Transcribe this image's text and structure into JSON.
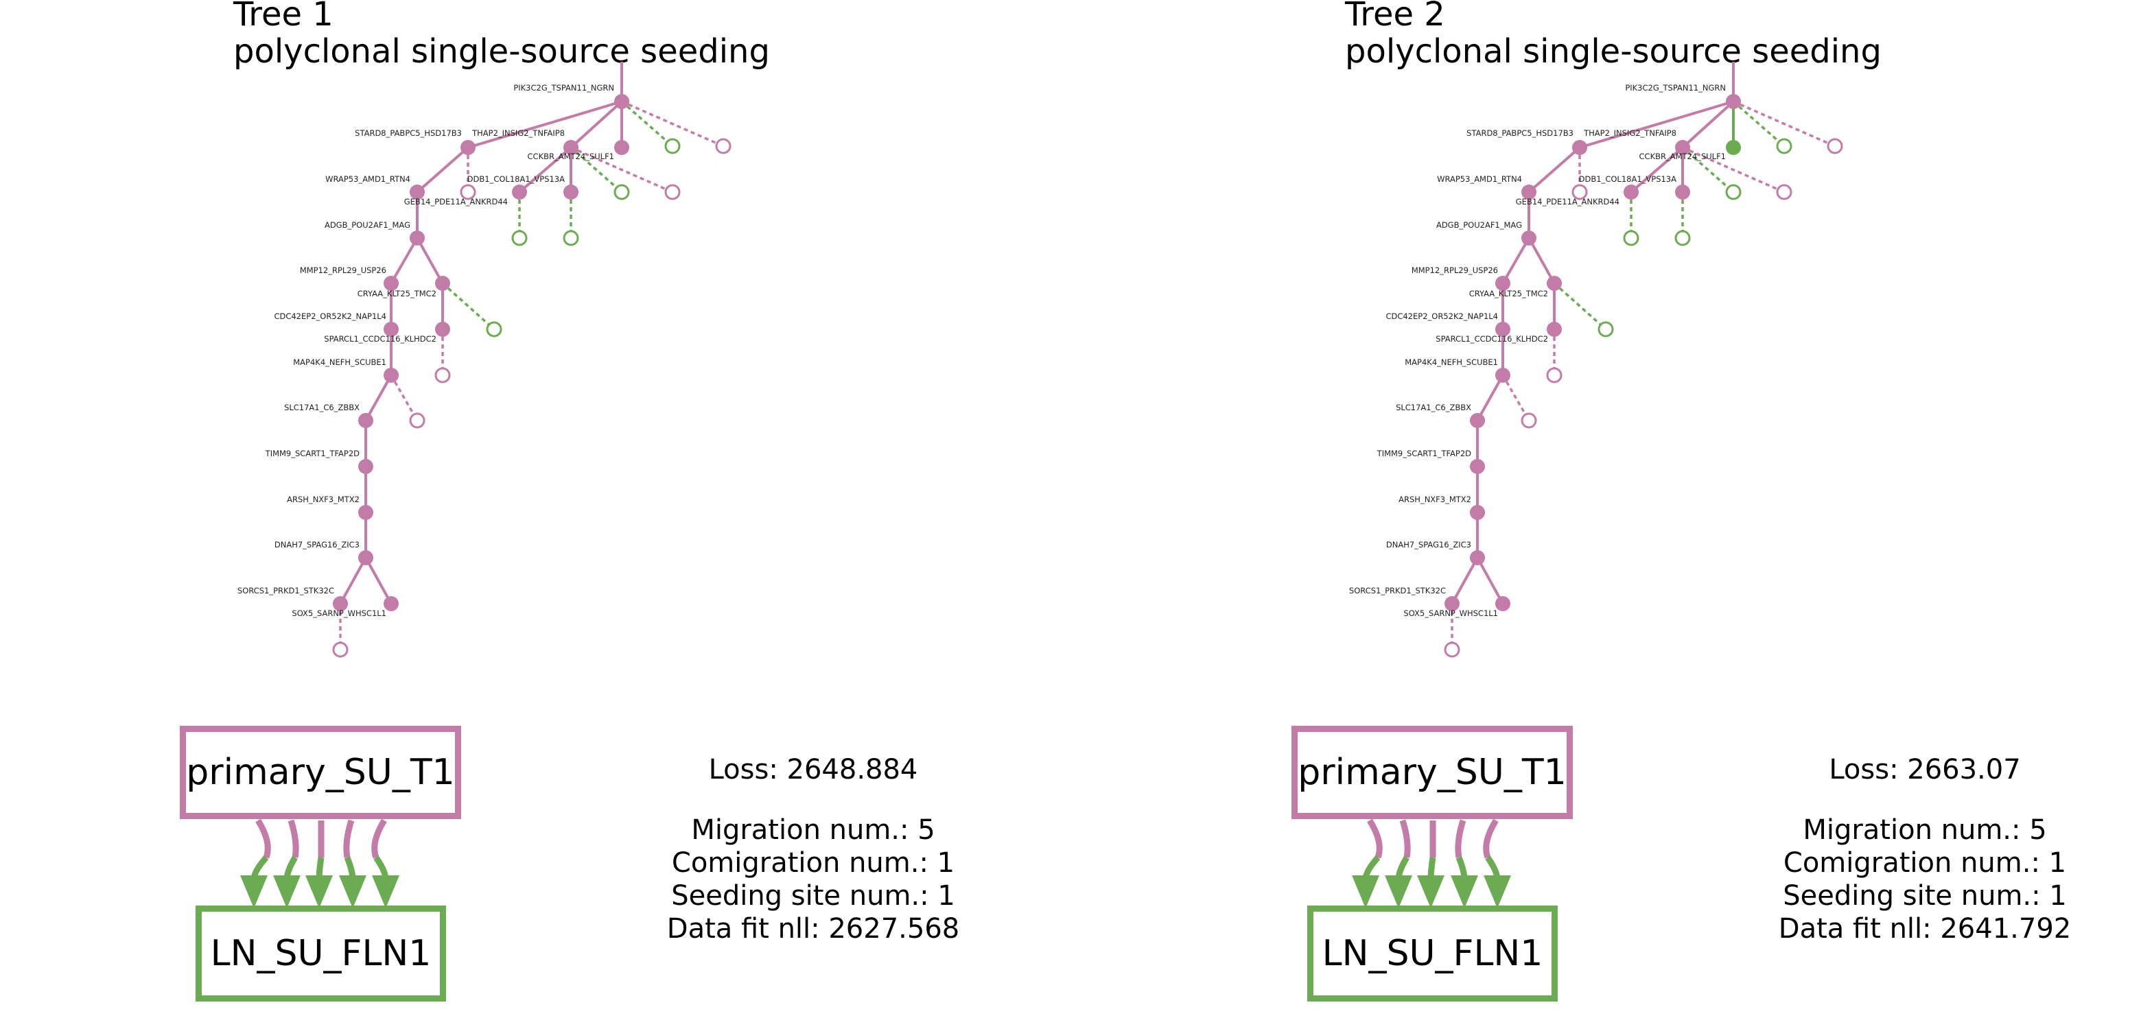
{
  "colors": {
    "primary": "#C37BA7",
    "lymph_node": "#6BAC53"
  },
  "panels": [
    {
      "title": "Tree 1",
      "subtitle": "polyclonal single-source seeding",
      "gene_labels": [
        "PIK3C2G_TSPAN11_NGRN",
        "STARD8_PABPC5_HSD17B3",
        "THAP2_INSIG2_TNFAIP8",
        "CCKBR_AMT24_SULF1",
        "WRAP53_AMD1_RTN4",
        "DDB1_COL18A1_VPS13A",
        "GEB14_PDE11A_ANKRD44",
        "ADGB_POU2AF1_MAG",
        "MMP12_RPL29_USP26",
        "CRYAA_KLT25_TMC2",
        "CDC42EP2_OR52K2_NAP1L4",
        "SPARCL1_CCDC116_KLHDC2",
        "MAP4K4_NEFH_SCUBE1",
        "SLC17A1_C6_ZBBX",
        "TIMM9_SCART1_TFAP2D",
        "ARSH_NXF3_MTX2",
        "DNAH7_SPAG16_ZIC3",
        "SORCS1_PRKD1_STK32C",
        "SOX5_SARNP_WHSC1L1"
      ],
      "primary_site": "primary_SU_T1",
      "metastatic_site": "LN_SU_FLN1",
      "migration_edges": 5,
      "green_internal_node": false,
      "loss": "Loss: 2648.884",
      "migration": "Migration num.: 5",
      "comigration": "Comigration num.: 1",
      "seeding": "Seeding site num.: 1",
      "datafit": "Data fit nll: 2627.568"
    },
    {
      "title": "Tree 2",
      "subtitle": "polyclonal single-source seeding",
      "gene_labels": [
        "PIK3C2G_TSPAN11_NGRN",
        "STARD8_PABPC5_HSD17B3",
        "THAP2_INSIG2_TNFAIP8",
        "CCKBR_AMT24_SULF1",
        "WRAP53_AMD1_RTN4",
        "DDB1_COL18A1_VPS13A",
        "GEB14_PDE11A_ANKRD44",
        "ADGB_POU2AF1_MAG",
        "MMP12_RPL29_USP26",
        "CRYAA_KLT25_TMC2",
        "CDC42EP2_OR52K2_NAP1L4",
        "SPARCL1_CCDC116_KLHDC2",
        "MAP4K4_NEFH_SCUBE1",
        "SLC17A1_C6_ZBBX",
        "TIMM9_SCART1_TFAP2D",
        "ARSH_NXF3_MTX2",
        "DNAH7_SPAG16_ZIC3",
        "SORCS1_PRKD1_STK32C",
        "SOX5_SARNP_WHSC1L1"
      ],
      "primary_site": "primary_SU_T1",
      "metastatic_site": "LN_SU_FLN1",
      "migration_edges": 5,
      "green_internal_node": true,
      "loss": "Loss: 2663.07",
      "migration": "Migration num.: 5",
      "comigration": "Comigration num.: 1",
      "seeding": "Seeding site num.: 1",
      "datafit": "Data fit nll: 2641.792"
    }
  ]
}
